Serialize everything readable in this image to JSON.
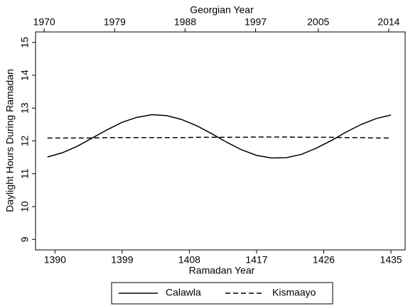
{
  "chart_data": {
    "type": "line",
    "xlabel": "Ramadan Year",
    "x2label": "Georgian Year",
    "ylabel": "Daylight Hours During Ramadan",
    "x": [
      1389,
      1391,
      1393,
      1395,
      1397,
      1399,
      1401,
      1403,
      1405,
      1407,
      1409,
      1411,
      1413,
      1415,
      1417,
      1419,
      1421,
      1423,
      1425,
      1427,
      1429,
      1431,
      1433,
      1435
    ],
    "series": [
      {
        "name": "Calawla",
        "color": "#000000",
        "dash": "solid",
        "values": [
          11.51,
          11.64,
          11.84,
          12.09,
          12.34,
          12.57,
          12.72,
          12.8,
          12.77,
          12.65,
          12.46,
          12.22,
          11.96,
          11.73,
          11.56,
          11.48,
          11.49,
          11.59,
          11.78,
          12.01,
          12.27,
          12.5,
          12.68,
          12.79
        ]
      },
      {
        "name": "Kismaayo",
        "color": "#000000",
        "dash": "dashed",
        "values": [
          12.09,
          12.09,
          12.09,
          12.09,
          12.1,
          12.1,
          12.1,
          12.1,
          12.1,
          12.1,
          12.11,
          12.11,
          12.11,
          12.11,
          12.12,
          12.12,
          12.12,
          12.11,
          12.11,
          12.11,
          12.1,
          12.1,
          12.09,
          12.09
        ]
      }
    ],
    "xlim": [
      1387.4,
      1436.9
    ],
    "xticks": [
      1390,
      1399,
      1408,
      1417,
      1426,
      1435
    ],
    "x2lim": [
      1968.9,
      2016.1
    ],
    "x2ticks": [
      1970,
      1979,
      1988,
      1997,
      2005,
      2014
    ],
    "ylim": [
      8.68,
      15.32
    ],
    "yticks": [
      9,
      10,
      11,
      12,
      13,
      14,
      15
    ],
    "grid": false,
    "legend": "bottom"
  }
}
